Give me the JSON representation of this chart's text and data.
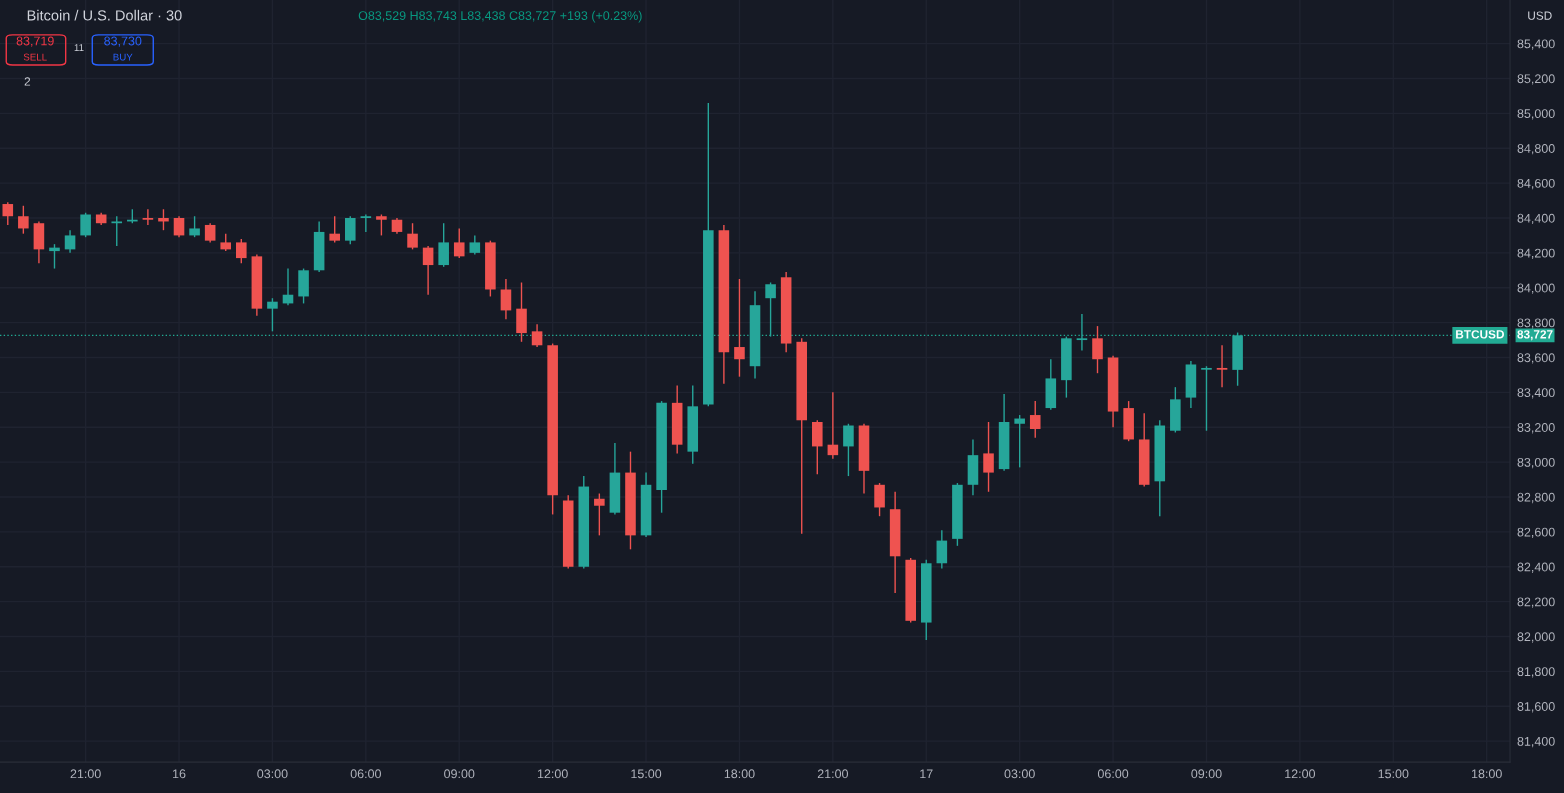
{
  "chart_data": {
    "type": "candlestick",
    "title": "Bitcoin / U.S. Dollar · 30",
    "annotations": [
      "O83,529 H83,743 L83,438 C83,727 +193 (+0.23%)",
      "83,719",
      "SELL",
      "11",
      "83,730",
      "BUY",
      "2",
      "USD",
      "83,727"
    ],
    "categories": [
      null,
      null,
      null,
      null,
      null,
      "21:00",
      null,
      null,
      null,
      null,
      null,
      "16",
      null,
      null,
      null,
      null,
      null,
      "03:00",
      null,
      null,
      null,
      null,
      null,
      "06:00",
      null,
      null,
      null,
      null,
      null,
      "09:00",
      null,
      null,
      null,
      null,
      null,
      "12:00",
      null,
      null,
      null,
      null,
      null,
      "15:00",
      null,
      null,
      null,
      null,
      null,
      "18:00",
      null,
      null,
      null,
      null,
      null,
      "21:00",
      null,
      null,
      null,
      null,
      null,
      "17",
      null,
      null,
      null,
      null,
      null,
      "03:00",
      null,
      null,
      null,
      null,
      null,
      "06:00",
      null,
      null,
      null,
      null,
      null,
      "09:00",
      null,
      null,
      null,
      null,
      null,
      "12:00",
      null,
      null,
      null,
      null,
      null,
      "15:00",
      null,
      null,
      null,
      null,
      null,
      "18:00",
      null
    ],
    "ohlc": [
      [
        84480,
        84490,
        84360,
        84410
      ],
      [
        84410,
        84470,
        84310,
        84340
      ],
      [
        84370,
        84380,
        84140,
        84220
      ],
      [
        84210,
        84250,
        84110,
        84230
      ],
      [
        84220,
        84330,
        84200,
        84300
      ],
      [
        84300,
        84430,
        84290,
        84420
      ],
      [
        84420,
        84430,
        84360,
        84370
      ],
      [
        84370,
        84410,
        84240,
        84380
      ],
      [
        84380,
        84450,
        84370,
        84390
      ],
      [
        84400,
        84450,
        84360,
        84390
      ],
      [
        84400,
        84450,
        84330,
        84380
      ],
      [
        84400,
        84410,
        84290,
        84300
      ],
      [
        84300,
        84410,
        84290,
        84340
      ],
      [
        84360,
        84370,
        84260,
        84270
      ],
      [
        84260,
        84310,
        84210,
        84220
      ],
      [
        84260,
        84280,
        84140,
        84170
      ],
      [
        84180,
        84190,
        83840,
        83880
      ],
      [
        83880,
        83940,
        83750,
        83920
      ],
      [
        83910,
        84110,
        83900,
        83960
      ],
      [
        83950,
        84110,
        83910,
        84100
      ],
      [
        84100,
        84380,
        84090,
        84320
      ],
      [
        84310,
        84410,
        84260,
        84270
      ],
      [
        84270,
        84410,
        84250,
        84400
      ],
      [
        84400,
        84420,
        84320,
        84410
      ],
      [
        84410,
        84420,
        84300,
        84390
      ],
      [
        84390,
        84400,
        84310,
        84320
      ],
      [
        84310,
        84370,
        84220,
        84230
      ],
      [
        84230,
        84240,
        83960,
        84130
      ],
      [
        84130,
        84370,
        84120,
        84260
      ],
      [
        84260,
        84340,
        84170,
        84180
      ],
      [
        84200,
        84300,
        84190,
        84260
      ],
      [
        84260,
        84270,
        83950,
        83990
      ],
      [
        83990,
        84050,
        83820,
        83870
      ],
      [
        83880,
        84030,
        83690,
        83740
      ],
      [
        83750,
        83790,
        83660,
        83670
      ],
      [
        83670,
        83680,
        82700,
        82810
      ],
      [
        82780,
        82810,
        82390,
        82400
      ],
      [
        82400,
        82920,
        82390,
        82860
      ],
      [
        82790,
        82820,
        82580,
        82750
      ],
      [
        82710,
        83110,
        82700,
        82940
      ],
      [
        82940,
        83060,
        82500,
        82580
      ],
      [
        82580,
        82940,
        82570,
        82870
      ],
      [
        82840,
        83350,
        82710,
        83340
      ],
      [
        83340,
        83440,
        83050,
        83100
      ],
      [
        83060,
        83440,
        82990,
        83320
      ],
      [
        83330,
        85060,
        83320,
        84330
      ],
      [
        84330,
        84360,
        83450,
        83630
      ],
      [
        83660,
        84050,
        83490,
        83590
      ],
      [
        83550,
        83980,
        83480,
        83900
      ],
      [
        83940,
        84030,
        83720,
        84020
      ],
      [
        84060,
        84090,
        83630,
        83680
      ],
      [
        83690,
        83710,
        82590,
        83240
      ],
      [
        83230,
        83240,
        82930,
        83090
      ],
      [
        83100,
        83400,
        83020,
        83040
      ],
      [
        83090,
        83220,
        82920,
        83210
      ],
      [
        83210,
        83220,
        82820,
        82950
      ],
      [
        82870,
        82880,
        82690,
        82740
      ],
      [
        82730,
        82830,
        82250,
        82460
      ],
      [
        82440,
        82450,
        82080,
        82090
      ],
      [
        82080,
        82440,
        81980,
        82420
      ],
      [
        82420,
        82610,
        82390,
        82550
      ],
      [
        82560,
        82880,
        82520,
        82870
      ],
      [
        82870,
        83130,
        82810,
        83040
      ],
      [
        83050,
        83230,
        82830,
        82940
      ],
      [
        82960,
        83390,
        82950,
        83230
      ],
      [
        83220,
        83270,
        82970,
        83250
      ],
      [
        83270,
        83350,
        83140,
        83190
      ],
      [
        83310,
        83590,
        83300,
        83480
      ],
      [
        83470,
        83720,
        83370,
        83710
      ],
      [
        83700,
        83850,
        83640,
        83710
      ],
      [
        83710,
        83780,
        83510,
        83590
      ],
      [
        83600,
        83610,
        83200,
        83290
      ],
      [
        83310,
        83350,
        83120,
        83130
      ],
      [
        83130,
        83280,
        82860,
        82870
      ],
      [
        82890,
        83240,
        82690,
        83210
      ],
      [
        83180,
        83430,
        83170,
        83360
      ],
      [
        83370,
        83580,
        83310,
        83560
      ],
      [
        83530,
        83550,
        83180,
        83540
      ],
      [
        83540,
        83670,
        83430,
        83530
      ],
      [
        83529,
        83743,
        83438,
        83727
      ],
      null,
      null,
      null,
      null,
      null,
      null,
      null,
      null,
      null,
      null,
      null,
      null,
      null,
      null,
      null,
      null,
      null
    ],
    "colors": [
      "#ef5350",
      "#ef5350",
      "#ef5350",
      "#26a69a",
      "#26a69a",
      "#26a69a",
      "#ef5350",
      "#26a69a",
      "#26a69a",
      "#ef5350",
      "#ef5350",
      "#ef5350",
      "#26a69a",
      "#ef5350",
      "#ef5350",
      "#ef5350",
      "#ef5350",
      "#26a69a",
      "#26a69a",
      "#26a69a",
      "#26a69a",
      "#ef5350",
      "#26a69a",
      "#26a69a",
      "#ef5350",
      "#ef5350",
      "#ef5350",
      "#ef5350",
      "#26a69a",
      "#ef5350",
      "#26a69a",
      "#ef5350",
      "#ef5350",
      "#ef5350",
      "#ef5350",
      "#ef5350",
      "#ef5350",
      "#26a69a",
      "#ef5350",
      "#26a69a",
      "#ef5350",
      "#26a69a",
      "#26a69a",
      "#ef5350",
      "#26a69a",
      "#26a69a",
      "#ef5350",
      "#ef5350",
      "#26a69a",
      "#26a69a",
      "#ef5350",
      "#ef5350",
      "#ef5350",
      "#ef5350",
      "#26a69a",
      "#ef5350",
      "#ef5350",
      "#ef5350",
      "#ef5350",
      "#26a69a",
      "#26a69a",
      "#26a69a",
      "#26a69a",
      "#ef5350",
      "#26a69a",
      "#26a69a",
      "#ef5350",
      "#26a69a",
      "#26a69a",
      "#26a69a",
      "#ef5350",
      "#ef5350",
      "#ef5350",
      "#ef5350",
      "#26a69a",
      "#26a69a",
      "#26a69a",
      "#26a69a",
      "#ef5350",
      "#26a69a",
      null,
      null,
      null,
      null,
      null,
      null,
      null,
      null,
      null,
      null,
      null,
      null,
      null,
      null,
      null,
      null,
      null
    ],
    "ylim": [
      81280,
      85650
    ],
    "yticks": [
      {
        "value": 81400,
        "label": "81,400"
      },
      {
        "value": 81600,
        "label": "81,600"
      },
      {
        "value": 81800,
        "label": "81,800"
      },
      {
        "value": 82000,
        "label": "82,000"
      },
      {
        "value": 82200,
        "label": "82,200"
      },
      {
        "value": 82400,
        "label": "82,400"
      },
      {
        "value": 82600,
        "label": "82,600"
      },
      {
        "value": 82800,
        "label": "82,800"
      },
      {
        "value": 83000,
        "label": "83,000"
      },
      {
        "value": 83200,
        "label": "83,200"
      },
      {
        "value": 83400,
        "label": "83,400"
      },
      {
        "value": 83600,
        "label": "83,600"
      },
      {
        "value": 83800,
        "label": "83,800"
      },
      {
        "value": 84000,
        "label": "84,000"
      },
      {
        "value": 84200,
        "label": "84,200"
      },
      {
        "value": 84400,
        "label": "84,400"
      },
      {
        "value": 84600,
        "label": "84,600"
      },
      {
        "value": 84800,
        "label": "84,800"
      },
      {
        "value": 85000,
        "label": "85,000"
      },
      {
        "value": 85200,
        "label": "85,200"
      },
      {
        "value": 85400,
        "label": "85,400"
      }
    ],
    "ref_lines": [
      {
        "axis": "y",
        "value": 83727,
        "label": "BTCUSD",
        "color": "#22ab94",
        "line_style": "dotted"
      }
    ],
    "grid": true
  }
}
